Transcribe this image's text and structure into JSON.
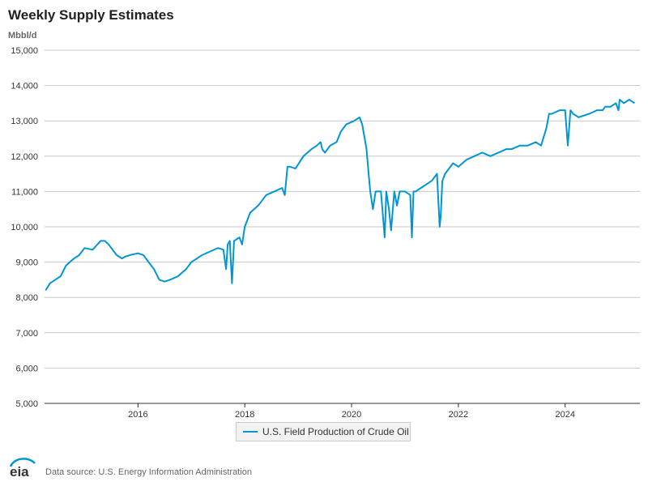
{
  "title": "Weekly Supply Estimates",
  "unit": "Mbbl/d",
  "legend": {
    "label": "U.S. Field Production of Crude Oil"
  },
  "footer": {
    "logo_text": "eia",
    "source": "Data source: U.S. Energy Information Administration"
  },
  "colors": {
    "series": "#0096d6",
    "grid": "#c8c8c8",
    "axis": "#333333"
  },
  "chart_data": {
    "type": "line",
    "title": "Weekly Supply Estimates",
    "ylabel": "Mbbl/d",
    "xlabel": "",
    "ylim": [
      5000,
      15000
    ],
    "xlim": [
      2014.25,
      2025.4
    ],
    "y_ticks": [
      5000,
      6000,
      7000,
      8000,
      9000,
      10000,
      11000,
      12000,
      13000,
      14000,
      15000
    ],
    "y_tick_labels": [
      "5,000",
      "6,000",
      "7,000",
      "8,000",
      "9,000",
      "10,000",
      "11,000",
      "12,000",
      "13,000",
      "14,000",
      "15,000"
    ],
    "x_ticks": [
      2016,
      2018,
      2020,
      2022,
      2024
    ],
    "x_tick_labels": [
      "2016",
      "2018",
      "2020",
      "2022",
      "2024"
    ],
    "grid": "horizontal",
    "legend_position": "bottom-center",
    "series": [
      {
        "name": "U.S. Field Production of Crude Oil",
        "x": [
          2014.27,
          2014.35,
          2014.45,
          2014.55,
          2014.65,
          2014.72,
          2014.8,
          2014.9,
          2015.0,
          2015.15,
          2015.3,
          2015.38,
          2015.45,
          2015.6,
          2015.7,
          2015.75,
          2015.85,
          2016.0,
          2016.1,
          2016.2,
          2016.3,
          2016.4,
          2016.5,
          2016.6,
          2016.75,
          2016.9,
          2017.0,
          2017.2,
          2017.35,
          2017.5,
          2017.6,
          2017.65,
          2017.68,
          2017.72,
          2017.76,
          2017.8,
          2017.9,
          2017.95,
          2018.0,
          2018.1,
          2018.25,
          2018.4,
          2018.55,
          2018.7,
          2018.75,
          2018.8,
          2018.85,
          2018.95,
          2019.1,
          2019.25,
          2019.35,
          2019.42,
          2019.45,
          2019.5,
          2019.6,
          2019.72,
          2019.8,
          2019.9,
          2020.05,
          2020.15,
          2020.2,
          2020.28,
          2020.32,
          2020.35,
          2020.4,
          2020.45,
          2020.5,
          2020.55,
          2020.62,
          2020.65,
          2020.7,
          2020.74,
          2020.8,
          2020.85,
          2020.9,
          2021.0,
          2021.1,
          2021.13,
          2021.16,
          2021.2,
          2021.3,
          2021.4,
          2021.5,
          2021.6,
          2021.65,
          2021.67,
          2021.7,
          2021.75,
          2021.8,
          2021.9,
          2022.0,
          2022.15,
          2022.3,
          2022.45,
          2022.6,
          2022.75,
          2022.9,
          2023.0,
          2023.15,
          2023.3,
          2023.45,
          2023.55,
          2023.65,
          2023.7,
          2023.75,
          2023.9,
          2024.0,
          2024.05,
          2024.1,
          2024.15,
          2024.25,
          2024.45,
          2024.6,
          2024.7,
          2024.75,
          2024.85,
          2024.95,
          2025.0,
          2025.02,
          2025.1,
          2025.2,
          2025.3
        ],
        "values": [
          8200,
          8400,
          8500,
          8600,
          8900,
          9000,
          9100,
          9200,
          9400,
          9350,
          9600,
          9600,
          9500,
          9200,
          9100,
          9150,
          9200,
          9250,
          9200,
          9000,
          8800,
          8500,
          8450,
          8500,
          8600,
          8800,
          9000,
          9200,
          9300,
          9400,
          9350,
          8800,
          9500,
          9600,
          8400,
          9600,
          9700,
          9500,
          10000,
          10400,
          10600,
          10900,
          11000,
          11100,
          10900,
          11700,
          11700,
          11650,
          12000,
          12200,
          12300,
          12400,
          12200,
          12100,
          12300,
          12400,
          12700,
          12900,
          13000,
          13100,
          12900,
          12200,
          11500,
          11000,
          10500,
          11000,
          11000,
          11000,
          9700,
          11000,
          10500,
          9900,
          11000,
          10600,
          11000,
          11000,
          10900,
          9700,
          11000,
          11000,
          11100,
          11200,
          11300,
          11500,
          10000,
          10300,
          11300,
          11500,
          11600,
          11800,
          11700,
          11900,
          12000,
          12100,
          12000,
          12100,
          12200,
          12200,
          12300,
          12300,
          12400,
          12300,
          12800,
          13200,
          13200,
          13300,
          13300,
          12300,
          13300,
          13200,
          13100,
          13200,
          13300,
          13300,
          13400,
          13400,
          13500,
          13300,
          13600,
          13500,
          13600,
          13500
        ]
      }
    ]
  }
}
